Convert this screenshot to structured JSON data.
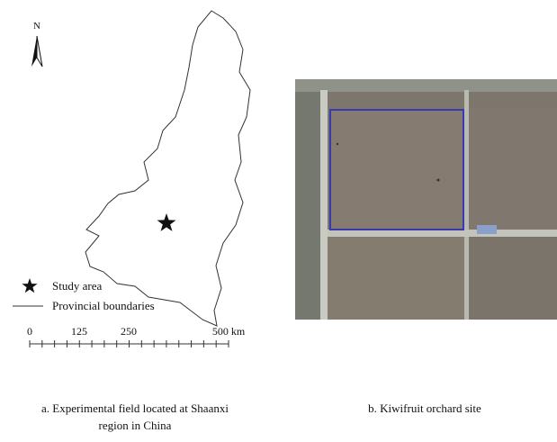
{
  "map": {
    "north_label": "N",
    "legend": {
      "star": "Study area",
      "line": "Provincial boundaries"
    },
    "scale_bar": [
      "0",
      "125",
      "250",
      "500 km"
    ],
    "caption": [
      "a. Experimental field located at Shaanxi",
      "region in China"
    ]
  },
  "photo": {
    "caption": "b. Kiwifruit orchard site"
  }
}
